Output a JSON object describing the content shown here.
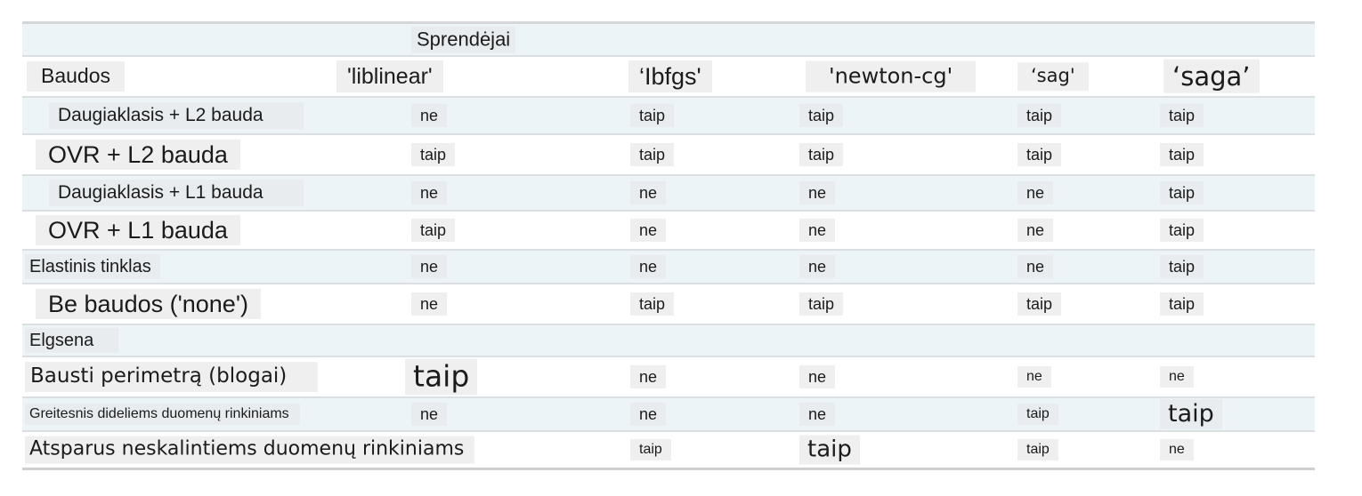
{
  "colors": {
    "row_stripe_blue": "#ecf4f8",
    "text_patch_gray": "#efefef",
    "grid_line": "#dcdfe1",
    "text": "#1b1b1b"
  },
  "chart_data": {
    "type": "table",
    "title": "Sprendėjai",
    "corner_label": "Baudos",
    "columns": [
      "Baudos",
      "'liblinear'",
      "‘Ibfgs'",
      "'newton-cg'",
      "‘sag'",
      "‘saga’"
    ],
    "section_header": "Elgsena",
    "rows": [
      [
        "Daugiaklasis + L2 bauda",
        "ne",
        "taip",
        "taip",
        "taip",
        "taip"
      ],
      [
        "OVR + L2 bauda",
        "taip",
        "taip",
        "taip",
        "taip",
        "taip"
      ],
      [
        "Daugiaklasis + L1 bauda",
        "ne",
        "ne",
        "ne",
        "ne",
        "taip"
      ],
      [
        "OVR + L1 bauda",
        "taip",
        "ne",
        "ne",
        "ne",
        "taip"
      ],
      [
        "Elastinis tinklas",
        "ne",
        "ne",
        "ne",
        "ne",
        "taip"
      ],
      [
        "Be baudos ('none')",
        "ne",
        "taip",
        "taip",
        "taip",
        "taip"
      ],
      [
        "Elgsena",
        "",
        "",
        "",
        "",
        ""
      ],
      [
        "Bausti perimetrą (blogai)",
        "taip",
        "ne",
        "ne",
        "ne",
        "ne"
      ],
      [
        "Greitesnis dideliems duomenų rinkiniams",
        "ne",
        "ne",
        "ne",
        "taip",
        "taip"
      ],
      [
        "Atsparus neskalintiems duomenų rinkiniams",
        "",
        "taip",
        "taip",
        "taip",
        "ne"
      ]
    ]
  }
}
